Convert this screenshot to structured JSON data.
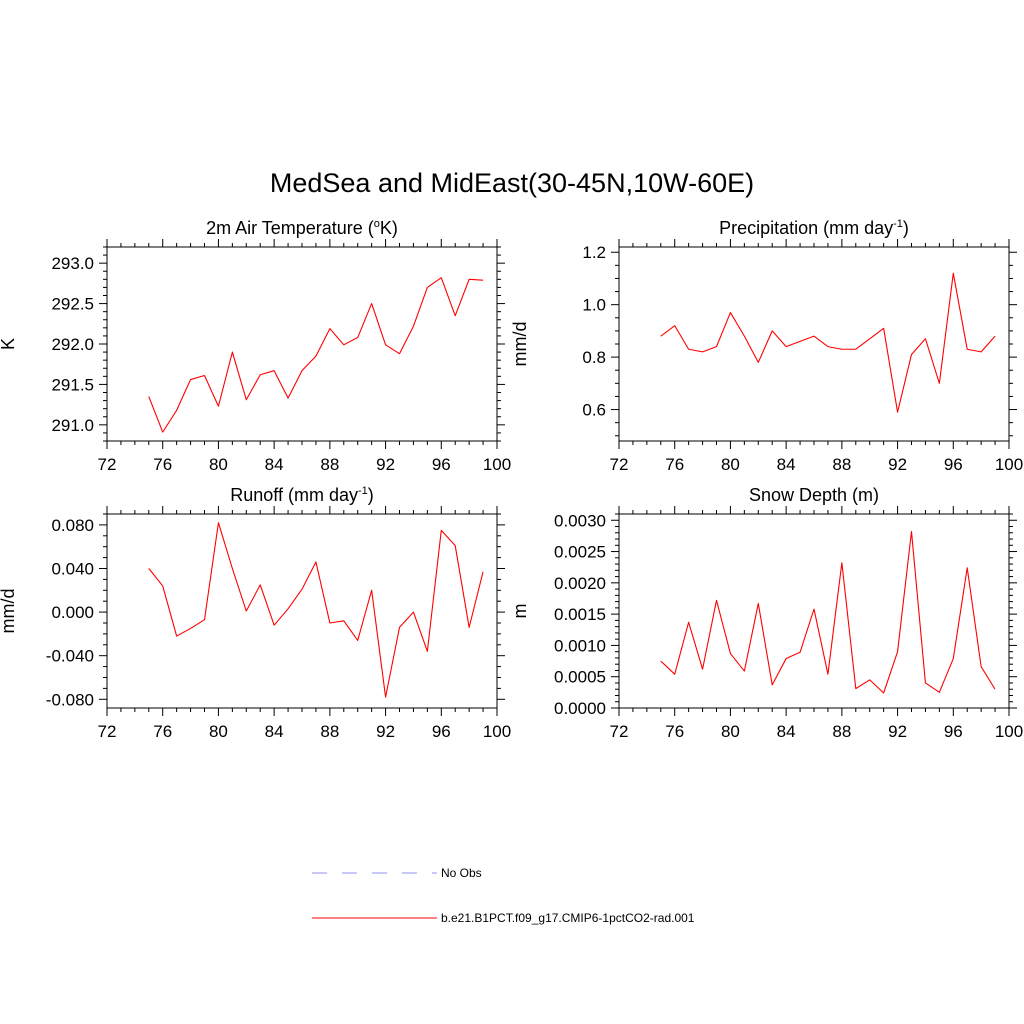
{
  "title": "MedSea and MidEast(30-45N,10W-60E)",
  "legend": {
    "entries": [
      {
        "label": "No Obs",
        "color": "#a8a8f0",
        "style": "dashed"
      },
      {
        "label": "b.e21.B1PCT.f09_g17.CMIP6-1pctCO2-rad.001",
        "color": "#ff0000",
        "style": "solid"
      }
    ]
  },
  "chart_data": [
    {
      "type": "line",
      "title": "2m Air Temperature (",
      "title_sup": "o",
      "title_tail": "K)",
      "xlabel": "",
      "ylabel": "K",
      "xlim": [
        72,
        100
      ],
      "ylim": [
        290.8,
        293.2
      ],
      "xticks": [
        72,
        76,
        80,
        84,
        88,
        92,
        96,
        100
      ],
      "yticks": [
        291.0,
        291.5,
        292.0,
        292.5,
        293.0
      ],
      "ytick_labels": [
        "291.0",
        "291.5",
        "292.0",
        "292.5",
        "293.0"
      ],
      "y_minor_step": 0.1,
      "x": [
        75,
        76,
        77,
        78,
        79,
        80,
        81,
        82,
        83,
        84,
        85,
        86,
        87,
        88,
        89,
        90,
        91,
        92,
        93,
        94,
        95,
        96,
        97,
        98,
        99
      ],
      "series": [
        {
          "color": "#ff0000",
          "values": [
            291.35,
            290.91,
            291.18,
            291.56,
            291.61,
            291.23,
            291.9,
            291.31,
            291.62,
            291.67,
            291.33,
            291.67,
            291.85,
            292.19,
            291.99,
            292.08,
            292.5,
            291.99,
            291.88,
            292.22,
            292.7,
            292.82,
            292.35,
            292.8,
            292.79
          ]
        }
      ]
    },
    {
      "type": "line",
      "title": "Precipitation (mm day",
      "title_sup": "-1",
      "title_tail": ")",
      "xlabel": "",
      "ylabel": "mm/d",
      "xlim": [
        72,
        100
      ],
      "ylim": [
        0.48,
        1.22
      ],
      "xticks": [
        72,
        76,
        80,
        84,
        88,
        92,
        96,
        100
      ],
      "yticks": [
        0.6,
        0.8,
        1.0,
        1.2
      ],
      "ytick_labels": [
        "0.6",
        "0.8",
        "1.0",
        "1.2"
      ],
      "y_minor_step": 0.05,
      "x": [
        75,
        76,
        77,
        78,
        79,
        80,
        81,
        82,
        83,
        84,
        85,
        86,
        87,
        88,
        89,
        90,
        91,
        92,
        93,
        94,
        95,
        96,
        97,
        98,
        99
      ],
      "series": [
        {
          "color": "#ff0000",
          "values": [
            0.88,
            0.92,
            0.83,
            0.82,
            0.84,
            0.97,
            0.88,
            0.78,
            0.9,
            0.84,
            0.86,
            0.88,
            0.84,
            0.83,
            0.83,
            0.87,
            0.91,
            0.59,
            0.81,
            0.87,
            0.7,
            1.12,
            0.83,
            0.82,
            0.88
          ]
        }
      ]
    },
    {
      "type": "line",
      "title": "Runoff (mm day",
      "title_sup": "-1",
      "title_tail": ")",
      "xlabel": "",
      "ylabel": "mm/d",
      "xlim": [
        72,
        100
      ],
      "ylim": [
        -0.088,
        0.09
      ],
      "xticks": [
        72,
        76,
        80,
        84,
        88,
        92,
        96,
        100
      ],
      "yticks": [
        -0.08,
        -0.04,
        0.0,
        0.04,
        0.08
      ],
      "ytick_labels": [
        "-0.080",
        "-0.040",
        "0.000",
        "0.040",
        "0.080"
      ],
      "y_minor_step": 0.01,
      "x": [
        75,
        76,
        77,
        78,
        79,
        80,
        81,
        82,
        83,
        84,
        85,
        86,
        87,
        88,
        89,
        90,
        91,
        92,
        93,
        94,
        95,
        96,
        97,
        98,
        99
      ],
      "series": [
        {
          "color": "#ff0000",
          "values": [
            0.04,
            0.024,
            -0.022,
            -0.015,
            -0.007,
            0.082,
            0.04,
            0.001,
            0.025,
            -0.012,
            0.003,
            0.021,
            0.046,
            -0.01,
            -0.008,
            -0.026,
            0.02,
            -0.078,
            -0.014,
            0.0,
            -0.036,
            0.075,
            0.061,
            -0.014,
            0.037
          ]
        }
      ]
    },
    {
      "type": "line",
      "title": "Snow Depth (m)",
      "title_sup": "",
      "title_tail": "",
      "xlabel": "",
      "ylabel": "m",
      "xlim": [
        72,
        100
      ],
      "ylim": [
        0.0,
        0.0031
      ],
      "xticks": [
        72,
        76,
        80,
        84,
        88,
        92,
        96,
        100
      ],
      "yticks": [
        0.0,
        0.0005,
        0.001,
        0.0015,
        0.002,
        0.0025,
        0.003
      ],
      "ytick_labels": [
        "0.0000",
        "0.0005",
        "0.0010",
        "0.0015",
        "0.0020",
        "0.0025",
        "0.0030"
      ],
      "y_minor_step": 0.0001,
      "x": [
        75,
        76,
        77,
        78,
        79,
        80,
        81,
        82,
        83,
        84,
        85,
        86,
        87,
        88,
        89,
        90,
        91,
        92,
        93,
        94,
        95,
        96,
        97,
        98,
        99
      ],
      "series": [
        {
          "color": "#ff0000",
          "values": [
            0.00075,
            0.00054,
            0.00137,
            0.00062,
            0.00172,
            0.00087,
            0.00059,
            0.00167,
            0.00037,
            0.00079,
            0.00089,
            0.00158,
            0.00054,
            0.00232,
            0.00031,
            0.00045,
            0.00024,
            0.0009,
            0.00282,
            0.0004,
            0.00025,
            0.00079,
            0.00224,
            0.00066,
            0.0003
          ]
        }
      ]
    }
  ]
}
